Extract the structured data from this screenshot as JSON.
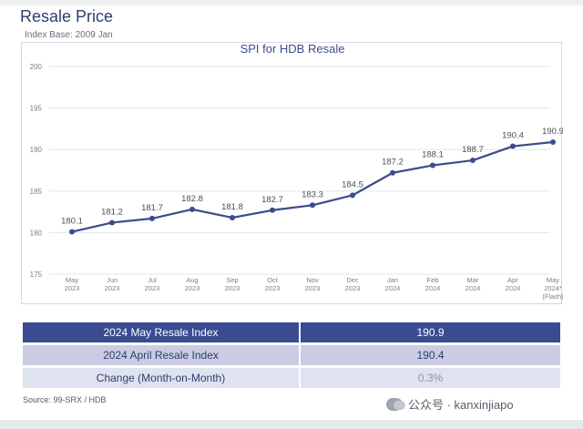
{
  "page": {
    "title": "Resale Price",
    "subtitle": "Index Base: 2009 Jan",
    "source": "Source: 99-SRX / HDB",
    "watermark": "公众号 · kanxinjiapo",
    "watermark_icon": "wechat-icon"
  },
  "chart_data": {
    "type": "line",
    "title": "SPI for HDB Resale",
    "xlabel": "",
    "ylabel": "",
    "ylim": [
      175,
      200
    ],
    "yticks": [
      175,
      180,
      185,
      190,
      195,
      200
    ],
    "grid": "horizontal",
    "categories": [
      [
        "May",
        "2023"
      ],
      [
        "Jun",
        "2023"
      ],
      [
        "Jul",
        "2023"
      ],
      [
        "Aug",
        "2023"
      ],
      [
        "Sep",
        "2023"
      ],
      [
        "Oct",
        "2023"
      ],
      [
        "Nov",
        "2023"
      ],
      [
        "Dec",
        "2023"
      ],
      [
        "Jan",
        "2024"
      ],
      [
        "Feb",
        "2024"
      ],
      [
        "Mar",
        "2024"
      ],
      [
        "Apr",
        "2024"
      ],
      [
        "May",
        "2024*",
        "(Flash)"
      ]
    ],
    "values": [
      180.1,
      181.2,
      181.7,
      182.8,
      181.8,
      182.7,
      183.3,
      184.5,
      187.2,
      188.1,
      188.7,
      190.4,
      190.9
    ],
    "data_labels": [
      "180.1",
      "181.2",
      "181.7",
      "182.8",
      "181.8",
      "182.7",
      "183.3",
      "184.5",
      "187.2",
      "188.1",
      "188.7",
      "190.4",
      "190.9"
    ],
    "line_color": "#3d4b8c"
  },
  "table": [
    {
      "label": "2024 May Resale Index",
      "value": "190.9"
    },
    {
      "label": "2024 April Resale Index",
      "value": "190.4"
    },
    {
      "label": "Change (Month-on-Month)",
      "value": "0.3%"
    }
  ]
}
